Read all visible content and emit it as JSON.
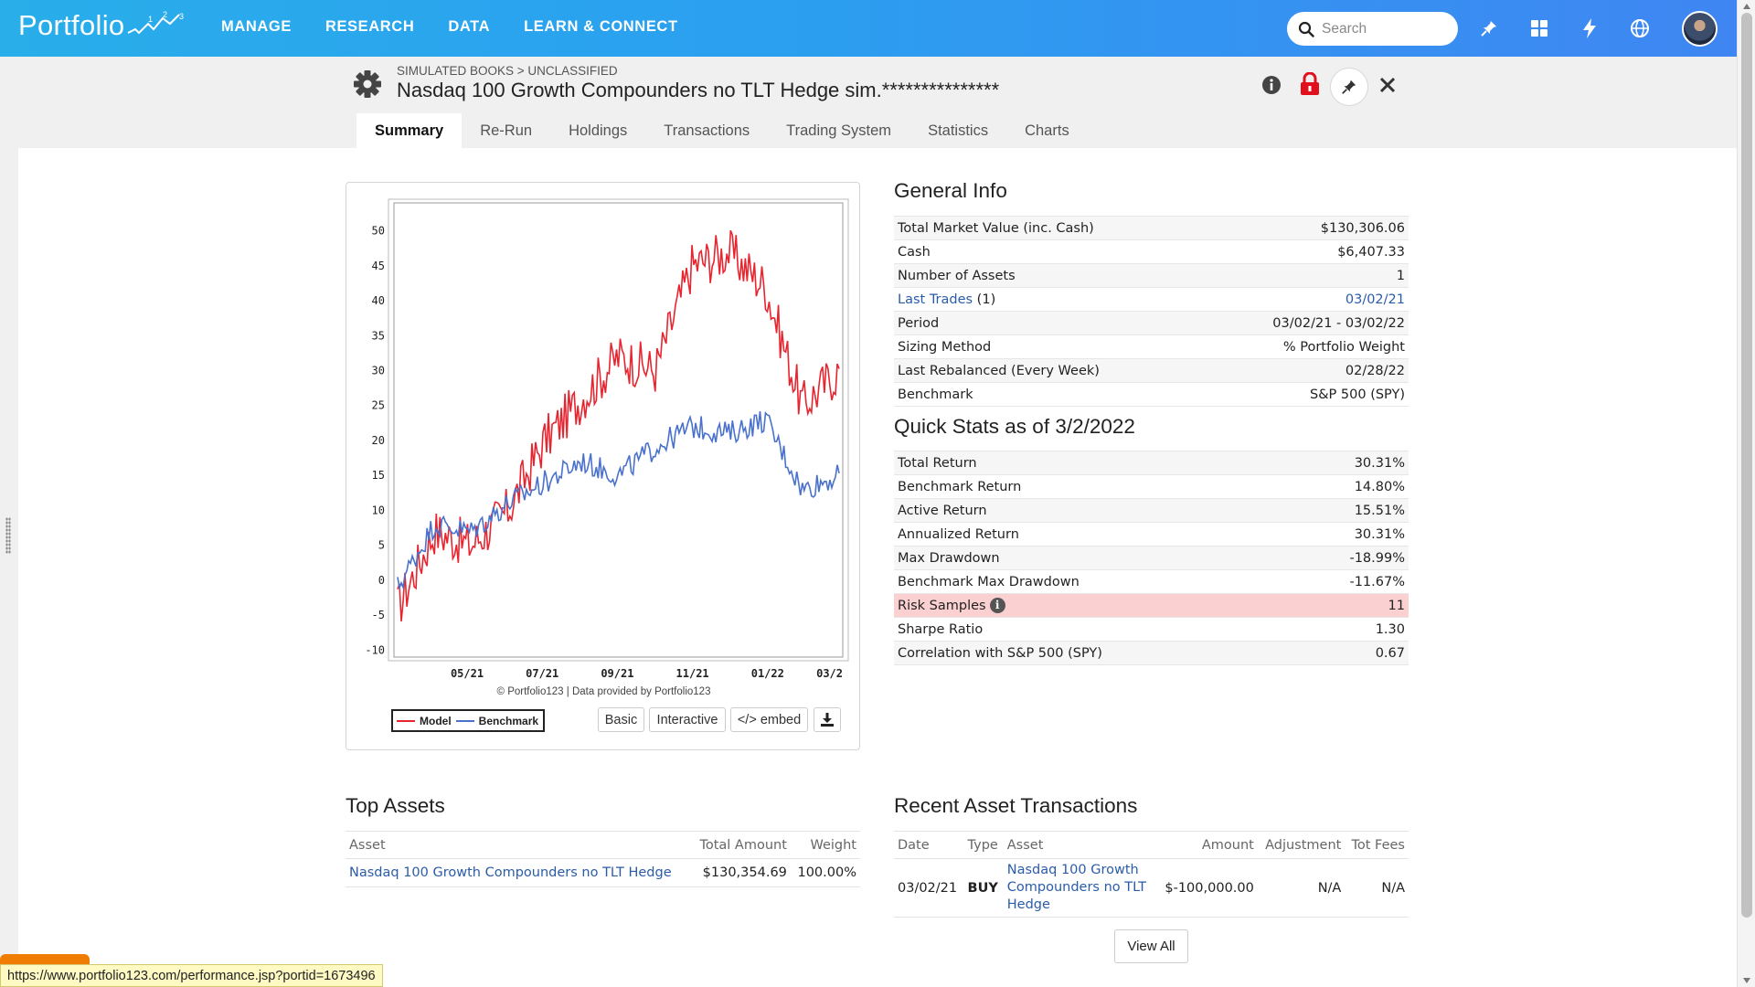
{
  "topbar": {
    "logo_text": "Portfolio",
    "nav": [
      "MANAGE",
      "RESEARCH",
      "DATA",
      "LEARN & CONNECT"
    ],
    "search_placeholder": "Search",
    "icons": [
      "pin-icon",
      "grid-apps-icon",
      "lightning-icon",
      "globe-icon"
    ]
  },
  "header": {
    "breadcrumb": "SIMULATED BOOKS > UNCLASSIFIED",
    "title": "Nasdaq 100 Growth Compounders no TLT Hedge sim.***************"
  },
  "tabs": [
    {
      "label": "Summary",
      "active": true
    },
    {
      "label": "Re-Run"
    },
    {
      "label": "Holdings"
    },
    {
      "label": "Transactions"
    },
    {
      "label": "Trading System"
    },
    {
      "label": "Statistics"
    },
    {
      "label": "Charts"
    }
  ],
  "chart_data": {
    "type": "line",
    "y_ticks": [
      -10,
      -5,
      0,
      5,
      10,
      15,
      20,
      25,
      30,
      35,
      40,
      45,
      50
    ],
    "x_ticks": [
      "05/21",
      "07/21",
      "09/21",
      "11/21",
      "01/22",
      "03/2"
    ],
    "ylim": [
      -11,
      54
    ],
    "x": [
      "03/21",
      "04/21",
      "05/21",
      "06/21",
      "07/21",
      "08/21",
      "09/21",
      "10/21",
      "11/21",
      "12/21",
      "01/22",
      "02/22",
      "03/22"
    ],
    "series": [
      {
        "name": "Model",
        "color": "#e8242f",
        "values": [
          -4,
          7,
          5,
          10,
          20,
          26,
          32,
          30,
          45,
          47,
          42,
          25,
          30
        ]
      },
      {
        "name": "Benchmark",
        "color": "#4a72cc",
        "values": [
          -1,
          8,
          7,
          11,
          14,
          17,
          15,
          19,
          22,
          21,
          23,
          13,
          15
        ]
      }
    ],
    "copyright": "© Portfolio123 | Data provided by Portfolio123",
    "buttons": [
      "Basic",
      "Interactive",
      "</> embed"
    ]
  },
  "general_info": {
    "title": "General Info",
    "rows": [
      {
        "label": "Total Market Value (inc. Cash)",
        "value": "$130,306.06"
      },
      {
        "label": "Cash",
        "value": "$6,407.33"
      },
      {
        "label": "Number of Assets",
        "value": "1"
      },
      {
        "label": "Last Trades",
        "extra": " (1)",
        "value": "03/02/21"
      },
      {
        "label": "Period",
        "value": "03/02/21 - 03/02/22"
      },
      {
        "label": "Sizing Method",
        "value": "% Portfolio Weight"
      },
      {
        "label": "Last Rebalanced (Every Week)",
        "value": "02/28/22"
      },
      {
        "label": "Benchmark",
        "value": "S&P 500 (SPY)"
      }
    ]
  },
  "quick_stats": {
    "title": "Quick Stats as of 3/2/2022",
    "rows": [
      {
        "label": "Total Return",
        "value": "30.31%"
      },
      {
        "label": "Benchmark Return",
        "value": "14.80%"
      },
      {
        "label": "Active Return",
        "value": "15.51%"
      },
      {
        "label": "Annualized Return",
        "value": "30.31%"
      },
      {
        "label": "Max Drawdown",
        "value": "-18.99%"
      },
      {
        "label": "Benchmark Max Drawdown",
        "value": "-11.67%"
      },
      {
        "label": "Risk Samples",
        "value": "11"
      },
      {
        "label": "Sharpe Ratio",
        "value": "1.30"
      },
      {
        "label": "Correlation with S&P 500 (SPY)",
        "value": "0.67"
      }
    ]
  },
  "top_assets": {
    "title": "Top Assets",
    "headers": [
      "Asset",
      "Total Amount",
      "Weight"
    ],
    "rows": [
      {
        "asset": "Nasdaq 100 Growth Compounders no TLT Hedge",
        "amount": "$130,354.69",
        "weight": "100.00%"
      }
    ]
  },
  "recent_transactions": {
    "title": "Recent Asset Transactions",
    "headers": [
      "Date",
      "Type",
      "Asset",
      "Amount",
      "Adjustment",
      "Tot Fees"
    ],
    "rows": [
      {
        "date": "03/02/21",
        "type": "BUY",
        "asset_lines": [
          "Nasdaq 100 Growth",
          "Compounders no TLT",
          "Hedge"
        ],
        "amount": "$-100,000.00",
        "adjustment": "N/A",
        "fees": "N/A"
      }
    ],
    "view_all": "View All"
  },
  "status_url": "https://www.portfolio123.com/performance.jsp?portid=1673496"
}
